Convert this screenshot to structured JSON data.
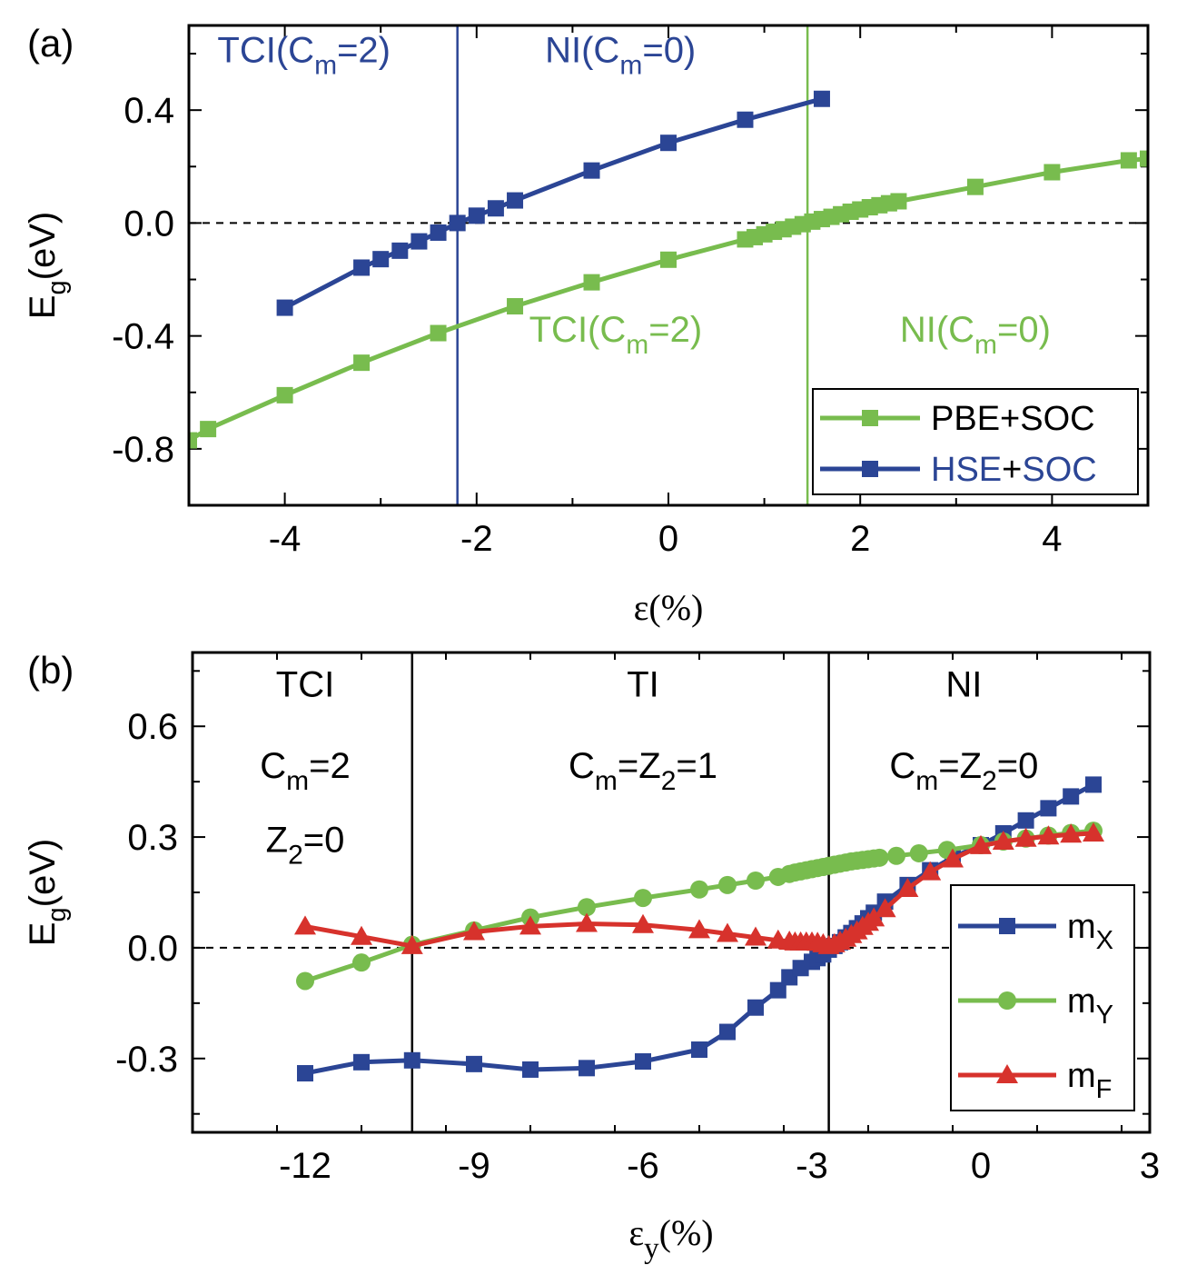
{
  "colors": {
    "blue": "#2b4595",
    "green": "#78bc4e",
    "red": "#d7322c",
    "black": "#000000"
  },
  "chart_data": [
    {
      "type": "line",
      "panel_label": "(a)",
      "xlabel": "ε(%)",
      "ylabel_main": "E",
      "ylabel_sub": "g",
      "ylabel_tail": "(eV)",
      "xlim": [
        -5,
        5
      ],
      "ylim": [
        -1.0,
        0.7
      ],
      "xticks": [
        -4,
        -2,
        0,
        2,
        4
      ],
      "xtick_labels": [
        "-4",
        "-2",
        "0",
        "2",
        "4"
      ],
      "yticks": [
        -0.8,
        -0.4,
        0.0,
        0.4
      ],
      "ytick_labels": [
        "-0.8",
        "-0.4",
        "0.0",
        "0.4"
      ],
      "zero_line": 0,
      "vlines": [
        {
          "x": -2.2,
          "color": "blue"
        },
        {
          "x": 1.45,
          "color": "green"
        }
      ],
      "regions": [
        {
          "color": "blue",
          "x": -3.8,
          "y": 0.57,
          "parts": [
            "TCI(C",
            "m",
            "=2)"
          ]
        },
        {
          "color": "blue",
          "x": -0.5,
          "y": 0.57,
          "parts": [
            "NI(C",
            "m",
            "=0)"
          ]
        },
        {
          "color": "green",
          "x": -0.55,
          "y": -0.42,
          "parts": [
            "TCI(C",
            "m",
            "=2)"
          ]
        },
        {
          "color": "green",
          "x": 3.2,
          "y": -0.42,
          "parts": [
            "NI(C",
            "m",
            "=0)"
          ]
        }
      ],
      "series": [
        {
          "name": "PBE+SOC",
          "color": "green",
          "marker": "square",
          "x": [
            -5.0,
            -4.8,
            -4.0,
            -3.2,
            -2.4,
            -1.6,
            -0.8,
            0.0,
            0.8,
            0.9,
            1.0,
            1.1,
            1.2,
            1.3,
            1.4,
            1.5,
            1.6,
            1.7,
            1.8,
            1.9,
            2.0,
            2.1,
            2.2,
            2.3,
            2.4,
            3.2,
            4.0,
            4.8,
            5.0
          ],
          "y": [
            -0.77,
            -0.73,
            -0.61,
            -0.495,
            -0.39,
            -0.295,
            -0.21,
            -0.13,
            -0.058,
            -0.05,
            -0.04,
            -0.031,
            -0.022,
            -0.013,
            -0.004,
            0.005,
            0.014,
            0.022,
            0.031,
            0.04,
            0.048,
            0.056,
            0.063,
            0.07,
            0.077,
            0.128,
            0.18,
            0.222,
            0.228
          ]
        },
        {
          "name": "HSE+SOC",
          "color": "blue",
          "marker": "square",
          "x": [
            -4.0,
            -3.2,
            -3.0,
            -2.8,
            -2.6,
            -2.4,
            -2.2,
            -2.0,
            -1.8,
            -1.6,
            -0.8,
            0.0,
            0.8,
            1.6
          ],
          "y": [
            -0.3,
            -0.158,
            -0.128,
            -0.098,
            -0.065,
            -0.034,
            0.0,
            0.026,
            0.052,
            0.08,
            0.186,
            0.284,
            0.366,
            0.44
          ]
        }
      ],
      "legend": {
        "placement": "bottom-right",
        "entries": [
          {
            "series": 0,
            "parts": [
              {
                "t": "PBE+SOC",
                "c": "black"
              }
            ]
          },
          {
            "series": 1,
            "parts": [
              {
                "t": "HSE",
                "c": "blue"
              },
              {
                "t": "+",
                "c": "black"
              },
              {
                "t": "SOC",
                "c": "blue"
              }
            ]
          }
        ]
      }
    },
    {
      "type": "line",
      "panel_label": "(b)",
      "xlabel_main": "ε",
      "xlabel_sub": "y",
      "xlabel_tail": "(%)",
      "ylabel_main": "E",
      "ylabel_sub": "g",
      "ylabel_tail": "(eV)",
      "xlim": [
        -14,
        3
      ],
      "ylim": [
        -0.5,
        0.8
      ],
      "xticks": [
        -12,
        -9,
        -6,
        -3,
        0,
        3
      ],
      "xtick_labels": [
        "-12",
        "-9",
        "-6",
        "-3",
        "0",
        "3"
      ],
      "yticks": [
        -0.3,
        0.0,
        0.3,
        0.6
      ],
      "ytick_labels": [
        "-0.3",
        "0.0",
        "0.3",
        "0.6"
      ],
      "zero_line": 0,
      "vlines": [
        {
          "x": -10.1,
          "color": "black"
        },
        {
          "x": -2.7,
          "color": "black"
        }
      ],
      "regions": [
        {
          "color": "black",
          "x": -12.0,
          "y": 0.68,
          "parts": [
            "TCI"
          ]
        },
        {
          "color": "black",
          "x": -12.0,
          "y": 0.46,
          "parts": [
            "C",
            "m",
            "=2"
          ]
        },
        {
          "color": "black",
          "x": -12.0,
          "y": 0.26,
          "parts": [
            "Z",
            "2",
            "=0"
          ]
        },
        {
          "color": "black",
          "x": -6.0,
          "y": 0.68,
          "parts": [
            "TI"
          ]
        },
        {
          "color": "black",
          "x": -6.0,
          "y": 0.46,
          "parts": [
            "C",
            "m",
            "=Z",
            "2",
            "=1"
          ]
        },
        {
          "color": "black",
          "x": -0.3,
          "y": 0.68,
          "parts": [
            "NI"
          ]
        },
        {
          "color": "black",
          "x": -0.3,
          "y": 0.46,
          "parts": [
            "C",
            "m",
            "=Z",
            "2",
            "=0"
          ]
        }
      ],
      "series": [
        {
          "name": "m",
          "name_sub": "X",
          "color": "blue",
          "marker": "square",
          "x": [
            -12,
            -11,
            -10.1,
            -9,
            -8,
            -7,
            -6,
            -5,
            -4.5,
            -4,
            -3.6,
            -3.4,
            -3.2,
            -3.0,
            -2.9,
            -2.8,
            -2.7,
            -2.6,
            -2.5,
            -2.4,
            -2.3,
            -2.2,
            -2.1,
            -2.0,
            -1.9,
            -1.7,
            -1.3,
            -0.9,
            -0.5,
            0.0,
            0.4,
            0.8,
            1.2,
            1.6,
            2.0
          ],
          "y": [
            -0.34,
            -0.31,
            -0.305,
            -0.315,
            -0.33,
            -0.326,
            -0.308,
            -0.276,
            -0.228,
            -0.162,
            -0.115,
            -0.08,
            -0.055,
            -0.038,
            -0.028,
            -0.018,
            -0.005,
            0.005,
            0.015,
            0.028,
            0.04,
            0.053,
            0.066,
            0.08,
            0.095,
            0.125,
            0.17,
            0.21,
            0.245,
            0.278,
            0.31,
            0.345,
            0.378,
            0.41,
            0.442
          ]
        },
        {
          "name": "m",
          "name_sub": "Y",
          "color": "green",
          "marker": "circle",
          "x": [
            -12,
            -11,
            -10.1,
            -9,
            -8,
            -7,
            -6,
            -5,
            -4.5,
            -4,
            -3.6,
            -3.4,
            -3.3,
            -3.2,
            -3.1,
            -3.0,
            -2.9,
            -2.8,
            -2.7,
            -2.6,
            -2.5,
            -2.4,
            -2.3,
            -2.2,
            -2.1,
            -2.0,
            -1.9,
            -1.8,
            -1.5,
            -1.1,
            -0.6,
            0.0,
            0.4,
            0.8,
            1.2,
            1.6,
            2.0
          ],
          "y": [
            -0.09,
            -0.04,
            0.008,
            0.047,
            0.082,
            0.11,
            0.135,
            0.158,
            0.17,
            0.182,
            0.192,
            0.2,
            0.204,
            0.207,
            0.21,
            0.213,
            0.216,
            0.219,
            0.222,
            0.225,
            0.228,
            0.231,
            0.234,
            0.236,
            0.238,
            0.24,
            0.242,
            0.244,
            0.249,
            0.256,
            0.265,
            0.278,
            0.288,
            0.296,
            0.304,
            0.311,
            0.317
          ]
        },
        {
          "name": "m",
          "name_sub": "F",
          "color": "red",
          "marker": "triangle",
          "x": [
            -12,
            -11,
            -10.1,
            -9,
            -8,
            -7,
            -6,
            -5,
            -4.5,
            -4,
            -3.6,
            -3.4,
            -3.3,
            -3.2,
            -3.1,
            -3.0,
            -2.9,
            -2.8,
            -2.7,
            -2.6,
            -2.5,
            -2.4,
            -2.3,
            -2.2,
            -2.1,
            -2.0,
            -1.9,
            -1.7,
            -1.3,
            -0.9,
            -0.5,
            0.0,
            0.4,
            0.8,
            1.2,
            1.6,
            2.0
          ],
          "y": [
            0.058,
            0.03,
            0.005,
            0.043,
            0.058,
            0.065,
            0.062,
            0.048,
            0.038,
            0.028,
            0.02,
            0.017,
            0.015,
            0.015,
            0.015,
            0.015,
            0.014,
            0.01,
            0.005,
            0.01,
            0.017,
            0.025,
            0.035,
            0.045,
            0.057,
            0.068,
            0.08,
            0.105,
            0.16,
            0.205,
            0.24,
            0.276,
            0.288,
            0.296,
            0.302,
            0.307,
            0.31
          ]
        }
      ],
      "legend": {
        "placement": "bottom-right",
        "entries": [
          {
            "series": 0,
            "parts": [
              {
                "t": "m",
                "c": "black"
              },
              {
                "t": "X",
                "c": "black",
                "sub": true
              }
            ]
          },
          {
            "series": 1,
            "parts": [
              {
                "t": "m",
                "c": "black"
              },
              {
                "t": "Y",
                "c": "black",
                "sub": true
              }
            ]
          },
          {
            "series": 2,
            "parts": [
              {
                "t": "m",
                "c": "black"
              },
              {
                "t": "F",
                "c": "black",
                "sub": true
              }
            ]
          }
        ]
      }
    }
  ]
}
